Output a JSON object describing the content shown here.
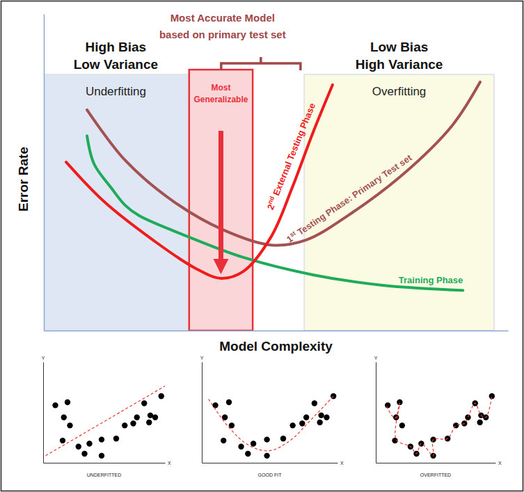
{
  "chart_data": [
    {
      "type": "line",
      "x_label": "Model Complexity",
      "y_label": "Error Rate",
      "xlim": [
        0,
        100
      ],
      "ylim": [
        0,
        100
      ],
      "tick_labels": false,
      "series": [
        {
          "name": "Training Phase",
          "color": "#1fab5a",
          "line_style": "solid",
          "x": [
            9.3,
            10.8,
            14.5,
            17.5,
            20.5,
            31.0,
            43.0,
            58.0,
            73.0,
            90.3
          ],
          "values": [
            61.5,
            52.7,
            45.1,
            39.6,
            36.3,
            29.7,
            23.1,
            17.6,
            14.3,
            12.7
          ]
        },
        {
          "name": "1st Testing Phase: Primary Test set",
          "color": "#a35252",
          "line_style": "solid",
          "x": [
            9.3,
            17.5,
            28.0,
            38.5,
            49.0,
            56.5,
            65.5,
            77.5,
            88.0,
            94.0
          ],
          "values": [
            69.7,
            53.8,
            40.7,
            31.9,
            27.0,
            28.6,
            36.3,
            49.5,
            64.8,
            78.5
          ]
        },
        {
          "name": "2nd External Testing Phase",
          "color": "#ee1c1c",
          "line_style": "solid",
          "x": [
            4.8,
            13.0,
            23.5,
            32.5,
            38.2,
            43.0,
            49.0,
            53.5,
            58.0,
            62.2
          ],
          "values": [
            53.2,
            40.7,
            28.6,
            19.8,
            16.5,
            18.7,
            29.7,
            45.1,
            62.6,
            77.6
          ]
        }
      ],
      "regions": [
        {
          "label": "Underfitting",
          "heading": [
            "High Bias",
            "Low Variance"
          ],
          "x": [
            0,
            31.0
          ],
          "y": [
            0,
            80.9
          ],
          "color": "#dfe7f4"
        },
        {
          "label": "Overfitting",
          "heading": [
            "Low Bias",
            "High Variance"
          ],
          "x": [
            56.1,
            97.0
          ],
          "y": [
            0,
            80.9
          ],
          "color": "#fbfbe4"
        },
        {
          "label": [
            "Most",
            "Generalizable"
          ],
          "x": [
            31.3,
            45.0
          ],
          "y": [
            0,
            82.4
          ],
          "color": "#e8303a"
        }
      ],
      "bracket": {
        "label": [
          "Most Accurate Model",
          "based on primary test set"
        ],
        "x": [
          38.2,
          55.3
        ],
        "color": "#a04848"
      }
    },
    {
      "type": "scatter",
      "title": "UNDERFITTED",
      "x_label": "X",
      "y_label": "Y",
      "xlim": [
        0,
        10
      ],
      "ylim": [
        0,
        10
      ],
      "tick_labels": false,
      "series": [
        {
          "type": "scatter",
          "marker": "circle",
          "color": "#000000",
          "x": [
            1.0,
            2.0,
            1.7,
            2.2,
            1.6,
            2.9,
            3.8,
            3.4,
            4.8,
            4.8,
            6.0,
            6.7,
            7.4,
            7.7,
            8.3,
            8.8,
            8.7,
            9.2,
            9.7
          ],
          "values": [
            5.7,
            6.0,
            4.5,
            3.7,
            2.2,
            1.6,
            1.9,
            0.9,
            2.3,
            0.7,
            2.4,
            3.7,
            3.9,
            4.5,
            5.9,
            4.7,
            4.0,
            4.5,
            6.6
          ]
        },
        {
          "type": "line",
          "line_style": "dashed",
          "color": "#e53935",
          "x": [
            0.2,
            10
          ],
          "values": [
            0.7,
            7.6
          ]
        }
      ]
    },
    {
      "type": "scatter",
      "title": "GOOD FIT",
      "x_label": "X",
      "y_label": "Y",
      "xlim": [
        0,
        10
      ],
      "ylim": [
        0,
        10
      ],
      "tick_labels": false,
      "series": [
        {
          "type": "scatter",
          "marker": "circle",
          "color": "#000000",
          "x": [
            1.0,
            2.0,
            1.7,
            2.2,
            1.6,
            2.9,
            3.8,
            3.4,
            4.8,
            4.8,
            6.0,
            6.7,
            7.4,
            7.7,
            8.3,
            8.8,
            8.7,
            9.2,
            9.7
          ],
          "values": [
            5.7,
            6.0,
            4.5,
            3.7,
            2.2,
            1.6,
            1.9,
            0.9,
            2.3,
            0.7,
            2.4,
            3.7,
            3.9,
            4.5,
            5.9,
            4.7,
            4.0,
            4.5,
            6.6
          ]
        },
        {
          "type": "line",
          "line_style": "dashed",
          "color": "#e53935",
          "x": [
            0.5,
            2.0,
            3.5,
            5.0,
            6.5,
            8.0,
            9.7
          ],
          "values": [
            6.3,
            3.5,
            1.7,
            1.2,
            2.2,
            4.2,
            6.6
          ]
        }
      ]
    },
    {
      "type": "scatter",
      "title": "OVERFITTED",
      "x_label": "X",
      "y_label": "Y",
      "xlim": [
        0,
        10
      ],
      "ylim": [
        0,
        10
      ],
      "tick_labels": false,
      "series": [
        {
          "type": "scatter",
          "marker": "circle",
          "color": "#000000",
          "x": [
            1.0,
            2.0,
            1.7,
            2.2,
            1.6,
            2.9,
            3.8,
            3.4,
            4.8,
            4.8,
            6.0,
            6.7,
            7.4,
            7.7,
            8.3,
            8.8,
            8.7,
            9.2,
            9.7
          ],
          "values": [
            5.7,
            6.0,
            4.5,
            3.7,
            2.2,
            1.6,
            1.9,
            0.9,
            2.3,
            0.7,
            2.4,
            3.7,
            3.9,
            4.5,
            5.9,
            4.7,
            4.0,
            4.5,
            6.6
          ]
        },
        {
          "type": "line",
          "line_style": "dashed",
          "color": "#e53935",
          "x": [
            0.9,
            1.6,
            2.0,
            1.7,
            2.9,
            3.4,
            3.8,
            4.8,
            4.8,
            6.0,
            6.7,
            7.4,
            7.7,
            8.3,
            8.8,
            9.2,
            9.7
          ],
          "values": [
            5.6,
            4.4,
            5.9,
            2.3,
            1.6,
            0.9,
            1.9,
            0.7,
            2.3,
            2.4,
            3.7,
            3.9,
            4.5,
            5.9,
            4.7,
            4.5,
            6.6
          ]
        }
      ]
    }
  ]
}
